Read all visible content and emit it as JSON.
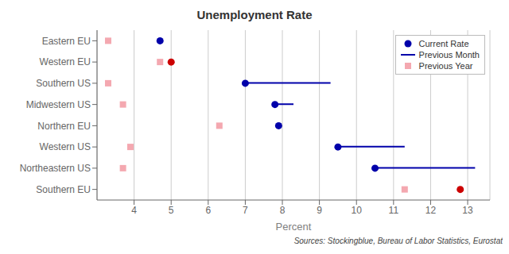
{
  "chart_data": {
    "type": "dot",
    "orientation": "horizontal",
    "title": "Unemployment Rate",
    "x_label": "Percent",
    "annotations": [
      "Sources: Stockingblue, Bureau of Labor Statistics, Eurostat"
    ],
    "categories": [
      "Eastern EU",
      "Western EU",
      "Southern US",
      "Midwestern US",
      "Northern EU",
      "Western US",
      "Northeastern US",
      "Southern EU"
    ],
    "series": [
      {
        "name": "Current Rate",
        "type": "scatter",
        "marker": "circle",
        "colors": [
          "#0000AA",
          "#CC0000",
          "#0000AA",
          "#0000AA",
          "#0000AA",
          "#0000AA",
          "#0000AA",
          "#CC0000"
        ],
        "values": [
          4.7,
          5.0,
          7.0,
          7.8,
          7.9,
          9.5,
          10.5,
          12.8
        ]
      },
      {
        "name": "Previous Month",
        "type": "line",
        "color": "#0000AA",
        "values": [
          null,
          null,
          9.3,
          8.3,
          null,
          11.3,
          13.2,
          null
        ]
      },
      {
        "name": "Previous Year",
        "type": "scatter",
        "marker": "square",
        "color": "#F4A8B0",
        "values": [
          3.3,
          4.7,
          3.3,
          3.7,
          6.3,
          3.9,
          3.7,
          11.3
        ]
      }
    ],
    "xlim": [
      3.0,
      13.6
    ],
    "xticks": [
      4,
      5,
      6,
      7,
      8,
      9,
      10,
      11,
      12,
      13
    ],
    "grid": "x",
    "legend": "upper right"
  }
}
